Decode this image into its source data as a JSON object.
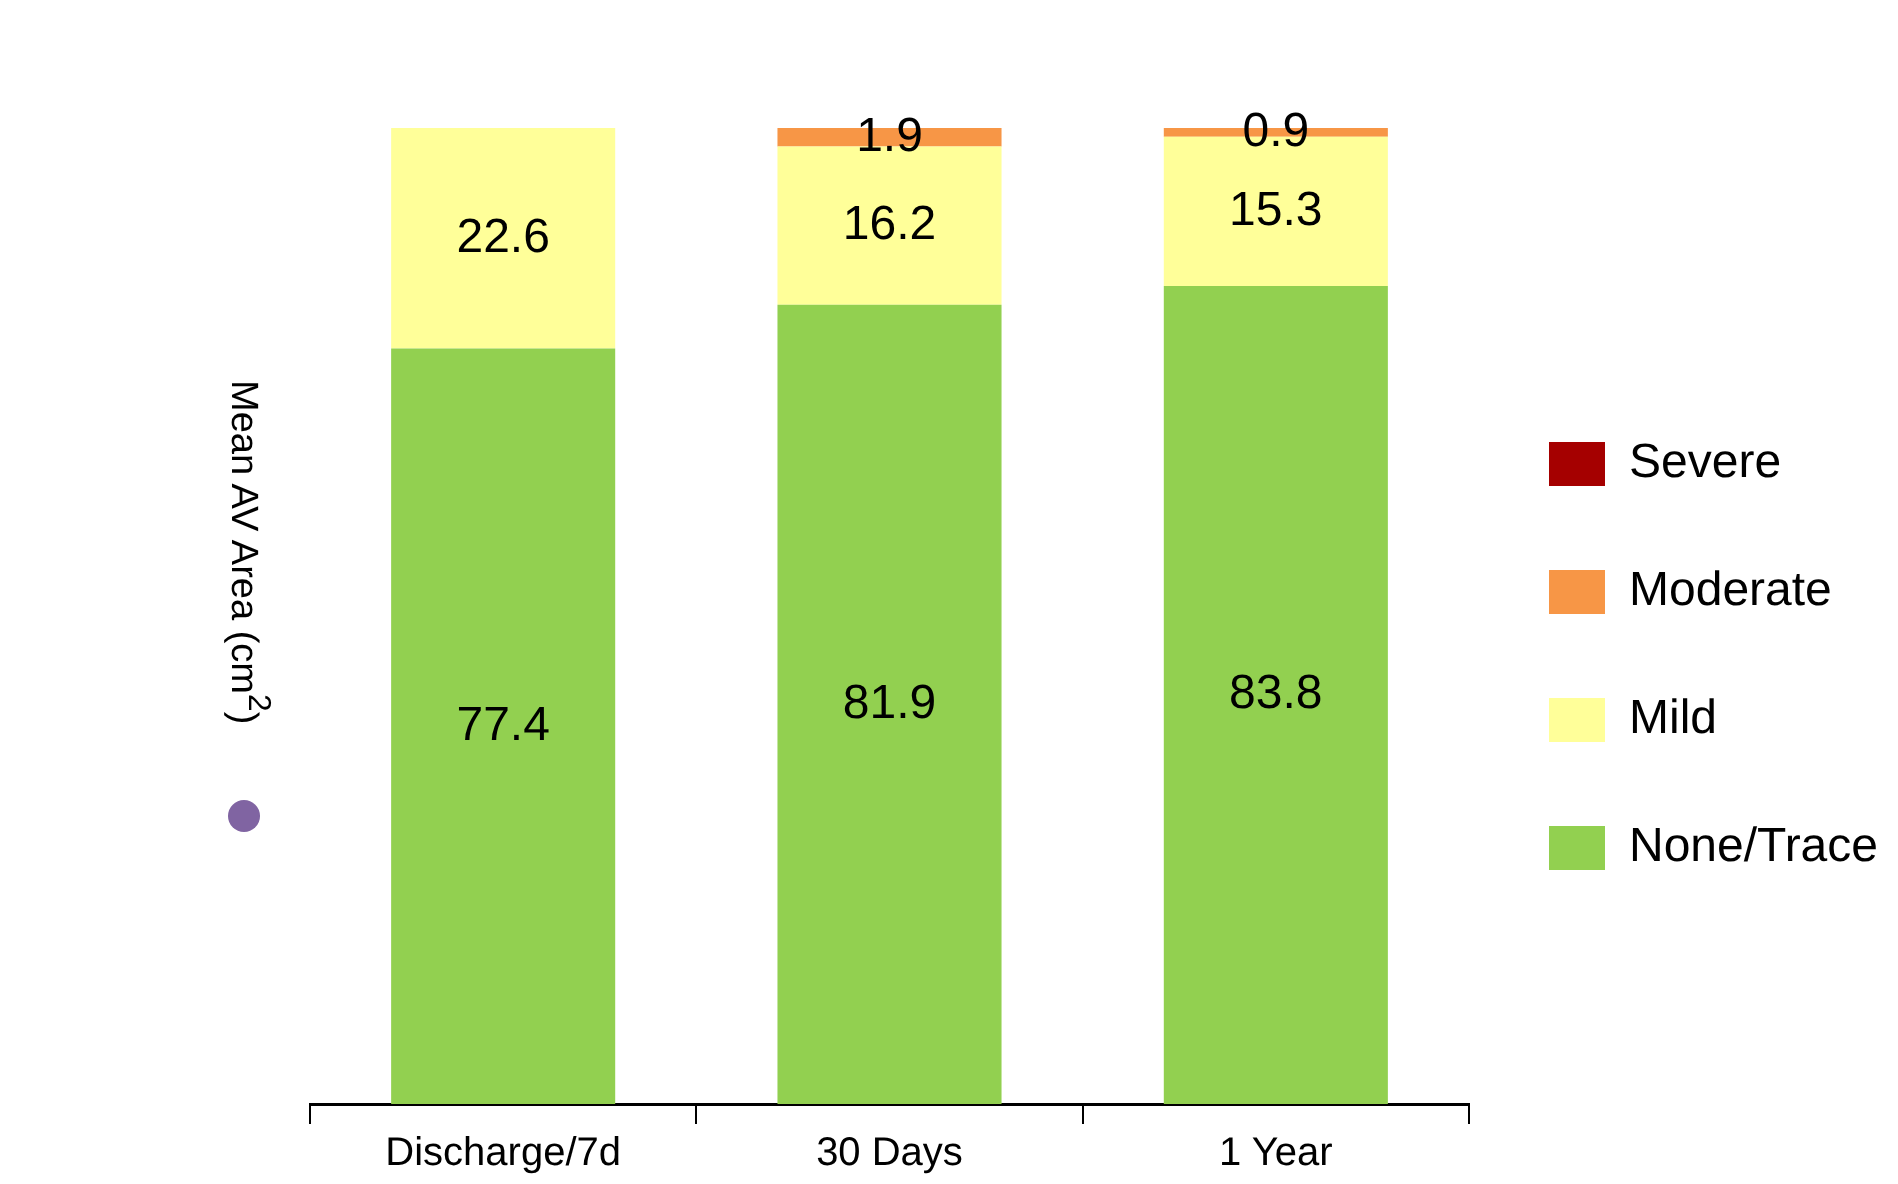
{
  "chart_data": {
    "type": "bar",
    "stacked": true,
    "ylabel": "Mean AV Area (cm$^{2}$)",
    "categories": [
      "Discharge/7d",
      "30 Days",
      "1 Year"
    ],
    "ylim": [
      0,
      100
    ],
    "legend": "right",
    "tick_labels": "x",
    "series": [
      {
        "name": "None/Trace",
        "color": "#92d050",
        "values": [
          77.4,
          81.9,
          83.8
        ],
        "value_labels": [
          "77.4",
          "81.9",
          "83.8"
        ]
      },
      {
        "name": "Mild",
        "color": "#ffff99",
        "values": [
          22.6,
          16.2,
          15.3
        ],
        "value_labels": [
          "22.6",
          "16.2",
          "15.3"
        ]
      },
      {
        "name": "Moderate",
        "color": "#f79646",
        "values": [
          0,
          1.9,
          0.9
        ],
        "value_labels": [
          null,
          "1.9",
          "0.9"
        ]
      },
      {
        "name": "Severe",
        "color": "#a50000",
        "values": [
          0,
          0,
          0
        ],
        "value_labels": [
          null,
          null,
          null
        ]
      }
    ]
  }
}
